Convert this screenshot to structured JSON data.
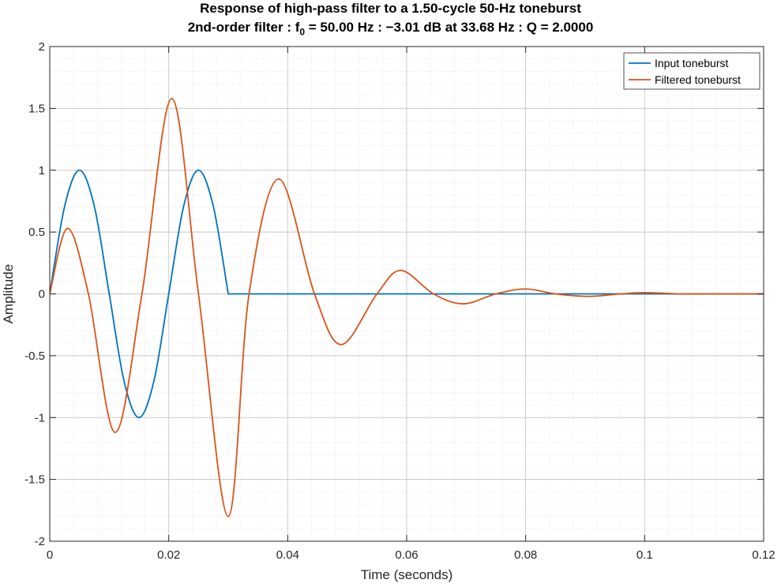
{
  "title_line1": "Response of high-pass filter to a 1.50-cycle 50-Hz toneburst",
  "title_line2_prefix": "2nd-order filter : f",
  "title_line2_sub": "0",
  "title_line2_suffix": " = 50.00 Hz : −3.01 dB at 33.68 Hz : Q = 2.0000",
  "chart_data": {
    "type": "line",
    "title": "Response of high-pass filter to a 1.50-cycle 50-Hz toneburst",
    "subtitle": "2nd-order filter : f0 = 50.00 Hz : −3.01 dB at 33.68 Hz : Q = 2.0000",
    "xlabel": "Time (seconds)",
    "ylabel": "Amplitude",
    "xlim": [
      0,
      0.12
    ],
    "ylim": [
      -2,
      2
    ],
    "xticks": [
      0,
      0.02,
      0.04,
      0.06,
      0.08,
      0.1,
      0.12
    ],
    "xtick_labels": [
      "0",
      "0.02",
      "0.04",
      "0.06",
      "0.08",
      "0.1",
      "0.12"
    ],
    "yticks": [
      -2,
      -1.5,
      -1,
      -0.5,
      0,
      0.5,
      1,
      1.5,
      2
    ],
    "ytick_labels": [
      "-2",
      "-1.5",
      "-1",
      "-0.5",
      "0",
      "0.5",
      "1",
      "1.5",
      "2"
    ],
    "grid": true,
    "minor_grid": true,
    "legend_position": "top-right",
    "series": [
      {
        "name": "Input toneburst",
        "color": "#0072BD",
        "x": [
          0,
          0.0025,
          0.005,
          0.0075,
          0.01,
          0.0125,
          0.015,
          0.0175,
          0.02,
          0.0225,
          0.025,
          0.0275,
          0.03,
          0.03001,
          0.12
        ],
        "y": [
          0,
          0.707,
          1,
          0.707,
          0,
          -0.707,
          -1,
          -0.707,
          0,
          0.707,
          1,
          0.707,
          0,
          0,
          0
        ]
      },
      {
        "name": "Filtered toneburst",
        "color": "#D95319",
        "x": [
          0,
          0.003,
          0.0065,
          0.011,
          0.0155,
          0.0205,
          0.025,
          0.03,
          0.0335,
          0.0385,
          0.0445,
          0.049,
          0.055,
          0.059,
          0.0645,
          0.0695,
          0.075,
          0.08,
          0.085,
          0.0905,
          0.096,
          0.1,
          0.106,
          0.11,
          0.12
        ],
        "y": [
          0,
          0.53,
          0,
          -1.12,
          0,
          1.58,
          0,
          -1.8,
          0,
          0.93,
          0,
          -0.41,
          0,
          0.19,
          0,
          -0.08,
          0,
          0.04,
          0,
          -0.02,
          0,
          0.01,
          0,
          0,
          0
        ]
      }
    ]
  }
}
